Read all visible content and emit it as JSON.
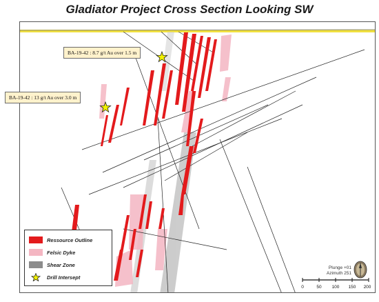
{
  "title": "Gladiator Project Cross Section Looking SW",
  "callouts": [
    {
      "text": "BA-19-42 : 8.7 g/t Au over 1.5 m"
    },
    {
      "text": "BA-19-42 : 13 g/t Au over 3.0 m"
    }
  ],
  "legend": {
    "items": [
      {
        "label": "Ressource Outline",
        "color": "#e31a1c",
        "symbol": "swatch"
      },
      {
        "label": "Felsic Dyke",
        "color": "#f4b6c2",
        "symbol": "swatch"
      },
      {
        "label": "Shear Zone",
        "color": "#8c8c8c",
        "symbol": "swatch"
      },
      {
        "label": "Drill Intersept",
        "color": "#f2f200",
        "symbol": "star-icon"
      }
    ]
  },
  "orientation": {
    "plunge": "Plunge +01",
    "azimuth": "Azimuth 251"
  },
  "scale_bar": {
    "ticks": [
      "0",
      "50",
      "100",
      "150",
      "200"
    ]
  },
  "colors": {
    "ore": "#e31a1c",
    "dyke": "#f4b6c2",
    "shear": "#b8b8b8",
    "surface": "#f0e040",
    "callout_bg": "#fff2cc"
  }
}
